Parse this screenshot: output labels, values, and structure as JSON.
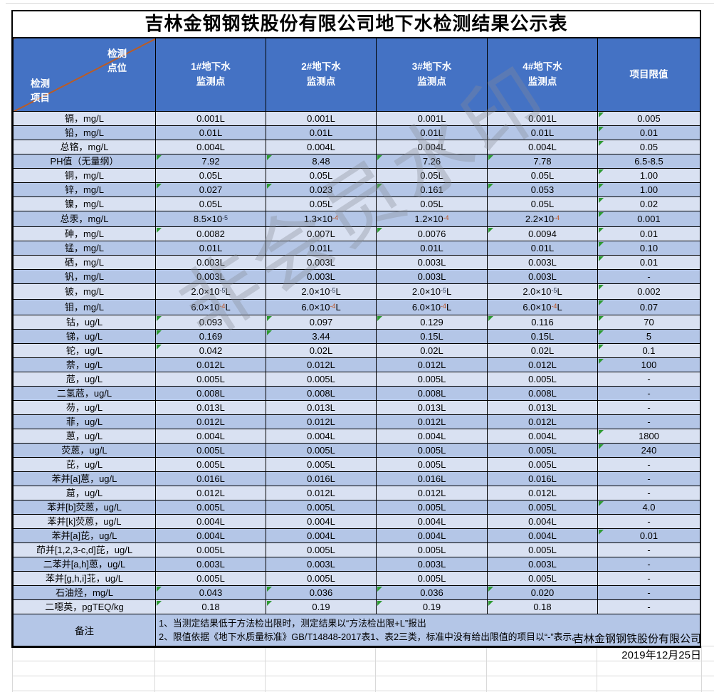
{
  "title": "吉林金钢钢铁股份有限公司地下水检测结果公示表",
  "header": {
    "corner_top": "检测\n点位",
    "corner_bottom": "检测\n项目",
    "columns": [
      "1#地下水\n监测点",
      "2#地下水\n监测点",
      "3#地下水\n监测点",
      "4#地下水\n监测点"
    ],
    "limit_col": "项目限值"
  },
  "table": {
    "rows": [
      {
        "item": "镉，mg/L",
        "values": [
          "0.001L",
          "0.001L",
          "0.001L",
          "0.001L"
        ],
        "limit": "0.005",
        "flags": [
          0,
          0,
          0,
          0,
          1
        ]
      },
      {
        "item": "铅，mg/L",
        "values": [
          "0.01L",
          "0.01L",
          "0.01L",
          "0.01L"
        ],
        "limit": "0.01",
        "flags": [
          0,
          0,
          0,
          0,
          1
        ]
      },
      {
        "item": "总铬，mg/L",
        "values": [
          "0.004L",
          "0.004L",
          "0.004L",
          "0.004L"
        ],
        "limit": "0.05",
        "flags": [
          0,
          0,
          0,
          0,
          1
        ]
      },
      {
        "item": "PH值（无量纲）",
        "values": [
          "7.92",
          "8.48",
          "7.26",
          "7.78"
        ],
        "limit": "6.5-8.5",
        "flags": [
          1,
          1,
          1,
          1,
          0
        ]
      },
      {
        "item": "铜，mg/L",
        "values": [
          "0.05L",
          "0.05L",
          "0.05L",
          "0.05L"
        ],
        "limit": "1.00",
        "flags": [
          0,
          0,
          0,
          0,
          1
        ]
      },
      {
        "item": "锌，mg/L",
        "values": [
          "0.027",
          "0.023",
          "0.161",
          "0.053"
        ],
        "limit": "1.00",
        "flags": [
          1,
          1,
          1,
          1,
          1
        ]
      },
      {
        "item": "镍，mg/L",
        "values": [
          "0.05L",
          "0.05L",
          "0.05L",
          "0.05L"
        ],
        "limit": "0.02",
        "flags": [
          0,
          0,
          0,
          0,
          1
        ]
      },
      {
        "item": "总汞，mg/L",
        "values": [
          "8.5×10^-5",
          "1.3×10^-4",
          "1.2×10^-4",
          "2.2×10^-4"
        ],
        "limit": "0.001",
        "flags": [
          0,
          0,
          0,
          0,
          1
        ],
        "tall": true
      },
      {
        "item": "砷，mg/L",
        "values": [
          "0.0082",
          "0.007L",
          "0.0076",
          "0.0094"
        ],
        "limit": "0.01",
        "flags": [
          1,
          0,
          1,
          1,
          1
        ]
      },
      {
        "item": "锰，mg/L",
        "values": [
          "0.01L",
          "0.01L",
          "0.01L",
          "0.01L"
        ],
        "limit": "0.10",
        "flags": [
          0,
          0,
          0,
          0,
          1
        ]
      },
      {
        "item": "硒，mg/L",
        "values": [
          "0.003L",
          "0.003L",
          "0.003L",
          "0.003L"
        ],
        "limit": "0.01",
        "flags": [
          0,
          0,
          0,
          0,
          1
        ]
      },
      {
        "item": "钒，mg/L",
        "values": [
          "0.003L",
          "0.003L",
          "0.003L",
          "0.003L"
        ],
        "limit": "-",
        "flags": [
          0,
          0,
          0,
          0,
          0
        ]
      },
      {
        "item": "铍，mg/L",
        "values": [
          "2.0×10^-5L",
          "2.0×10^-5L",
          "2.0×10^-5L",
          "2.0×10^-5L"
        ],
        "limit": "0.002",
        "flags": [
          0,
          0,
          0,
          0,
          1
        ],
        "tall": true
      },
      {
        "item": "钼，mg/L",
        "values": [
          "6.0×10^-4L",
          "6.0×10^-4L",
          "6.0×10^-4L",
          "6.0×10^-4L"
        ],
        "limit": "0.07",
        "flags": [
          0,
          0,
          0,
          0,
          1
        ],
        "tall": true
      },
      {
        "item": "钴，ug/L",
        "values": [
          "0.093",
          "0.097",
          "0.129",
          "0.116"
        ],
        "limit": "70",
        "flags": [
          1,
          1,
          1,
          1,
          1
        ]
      },
      {
        "item": "锑，ug/L",
        "values": [
          "0.169",
          "3.44",
          "0.15L",
          "0.15L"
        ],
        "limit": "5",
        "flags": [
          1,
          1,
          0,
          0,
          1
        ]
      },
      {
        "item": "铊，ug/L",
        "values": [
          "0.042",
          "0.02L",
          "0.02L",
          "0.02L"
        ],
        "limit": "0.1",
        "flags": [
          1,
          0,
          0,
          0,
          1
        ]
      },
      {
        "item": "萘，ug/L",
        "values": [
          "0.012L",
          "0.012L",
          "0.012L",
          "0.012L"
        ],
        "limit": "100",
        "flags": [
          0,
          0,
          0,
          0,
          1
        ]
      },
      {
        "item": "苊，ug/L",
        "values": [
          "0.005L",
          "0.005L",
          "0.005L",
          "0.005L"
        ],
        "limit": "-",
        "flags": [
          0,
          0,
          0,
          0,
          0
        ]
      },
      {
        "item": "二氢苊，ug/L",
        "values": [
          "0.008L",
          "0.008L",
          "0.008L",
          "0.008L"
        ],
        "limit": "-",
        "flags": [
          0,
          0,
          0,
          0,
          0
        ]
      },
      {
        "item": "芴，ug/L",
        "values": [
          "0.013L",
          "0.013L",
          "0.013L",
          "0.013L"
        ],
        "limit": "-",
        "flags": [
          0,
          0,
          0,
          0,
          0
        ]
      },
      {
        "item": "菲，ug/L",
        "values": [
          "0.012L",
          "0.012L",
          "0.012L",
          "0.012L"
        ],
        "limit": "-",
        "flags": [
          0,
          0,
          0,
          0,
          0
        ]
      },
      {
        "item": "蒽，ug/L",
        "values": [
          "0.004L",
          "0.004L",
          "0.004L",
          "0.004L"
        ],
        "limit": "1800",
        "flags": [
          0,
          0,
          0,
          0,
          1
        ]
      },
      {
        "item": "荧蒽，ug/L",
        "values": [
          "0.005L",
          "0.005L",
          "0.005L",
          "0.005L"
        ],
        "limit": "240",
        "flags": [
          0,
          0,
          0,
          0,
          1
        ]
      },
      {
        "item": "芘，ug/L",
        "values": [
          "0.005L",
          "0.005L",
          "0.005L",
          "0.005L"
        ],
        "limit": "-",
        "flags": [
          0,
          0,
          0,
          0,
          0
        ]
      },
      {
        "item": "苯并[a]蒽，ug/L",
        "values": [
          "0.016L",
          "0.016L",
          "0.016L",
          "0.016L"
        ],
        "limit": "-",
        "flags": [
          0,
          0,
          0,
          0,
          0
        ]
      },
      {
        "item": "䓛，ug/L",
        "values": [
          "0.012L",
          "0.012L",
          "0.012L",
          "0.012L"
        ],
        "limit": "-",
        "flags": [
          0,
          0,
          0,
          0,
          0
        ]
      },
      {
        "item": "苯并[b]荧蒽，ug/L",
        "values": [
          "0.005L",
          "0.005L",
          "0.005L",
          "0.005L"
        ],
        "limit": "4.0",
        "flags": [
          0,
          0,
          0,
          0,
          1
        ]
      },
      {
        "item": "苯并[k]荧蒽，ug/L",
        "values": [
          "0.004L",
          "0.004L",
          "0.004L",
          "0.004L"
        ],
        "limit": "-",
        "flags": [
          0,
          0,
          0,
          0,
          0
        ]
      },
      {
        "item": "苯并[a]芘，ug/L",
        "values": [
          "0.004L",
          "0.004L",
          "0.004L",
          "0.004L"
        ],
        "limit": "0.01",
        "flags": [
          0,
          0,
          0,
          0,
          1
        ]
      },
      {
        "item": "茚并[1,2,3-c,d]芘，ug/L",
        "values": [
          "0.005L",
          "0.005L",
          "0.005L",
          "0.005L"
        ],
        "limit": "-",
        "flags": [
          0,
          0,
          0,
          0,
          0
        ]
      },
      {
        "item": "二苯并[a,h]蒽，ug/L",
        "values": [
          "0.003L",
          "0.003L",
          "0.003L",
          "0.003L"
        ],
        "limit": "-",
        "flags": [
          0,
          0,
          0,
          0,
          0
        ]
      },
      {
        "item": "苯并[g,h,i]苝，ug/L",
        "values": [
          "0.005L",
          "0.005L",
          "0.005L",
          "0.005L"
        ],
        "limit": "-",
        "flags": [
          0,
          0,
          0,
          0,
          0
        ]
      },
      {
        "item": "石油烃，mg/L",
        "values": [
          "0.043",
          "0.036",
          "0.036",
          "0.020"
        ],
        "limit": "-",
        "flags": [
          1,
          1,
          1,
          1,
          0
        ]
      },
      {
        "item": "二噁英，pgTEQ/kg",
        "values": [
          "0.18",
          "0.19",
          "0.19",
          "0.18"
        ],
        "limit": "-",
        "flags": [
          1,
          1,
          1,
          1,
          0
        ]
      }
    ]
  },
  "remark": {
    "label": "备注",
    "lines": [
      "1、当测定结果低于方法检出限时，测定结果以“方法检出限+L”报出",
      "2、限值依据《地下水质量标准》GB/T14848-2017表1、表2三类，标准中没有给出限值的项目以“-”表示。"
    ]
  },
  "footer": {
    "company": "吉林金钢钢铁股份有限公司",
    "date": "2019年12月25日"
  },
  "watermark": {
    "text": "非会员水印"
  },
  "colors": {
    "header_bg": "#4472C4",
    "row_light": "#D9E1F2",
    "row_dark": "#B4C6E7",
    "border": "#000000",
    "diagonal_line": "#B85C28",
    "flag_triangle": "#2E9B33",
    "exp_minus4": "#C0531F",
    "exp_minus5": "#2A3550",
    "watermark_gray": "#878C96"
  }
}
